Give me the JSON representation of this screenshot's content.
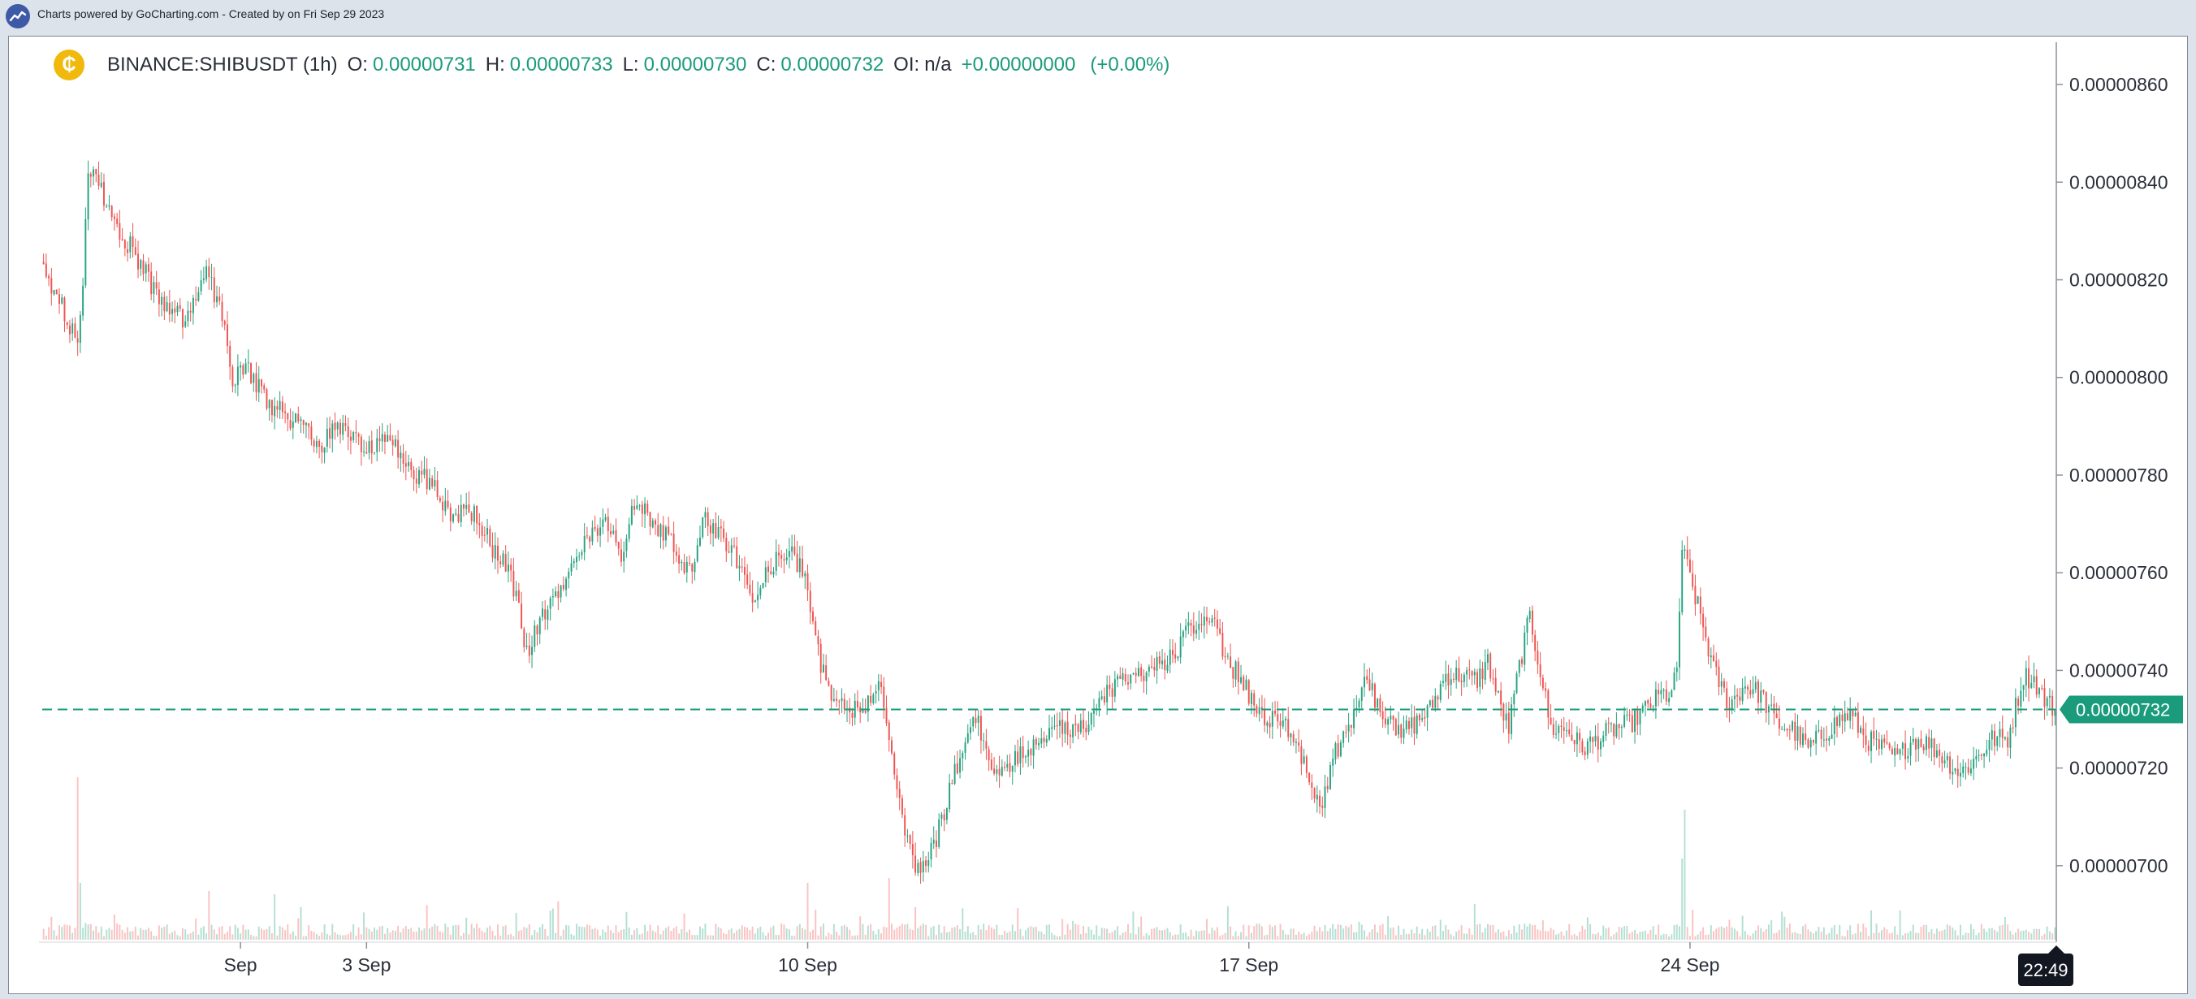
{
  "header": {
    "credit_text": "Charts powered by GoCharting.com - Created by  on Fri Sep 29 2023"
  },
  "legend": {
    "symbol": "BINANCE:SHIBUSDT (1h)",
    "open_label": "O:",
    "open_value": "0.00000731",
    "high_label": "H:",
    "high_value": "0.00000733",
    "low_label": "L:",
    "low_value": "0.00000730",
    "close_label": "C:",
    "close_value": "0.00000732",
    "oi_label": "OI:",
    "oi_value": "n/a",
    "change": "+0.00000000",
    "change_pct": "(+0.00%)"
  },
  "icons": {
    "brand": "gocharting-logo-icon",
    "coin": "shib-coin-icon"
  },
  "colors": {
    "up": "#26a27f",
    "down": "#ef5350",
    "last_price": "#1a9b7c",
    "coin": "#f0b90b",
    "brand": "#3e5aa6",
    "time_badge": "#131722"
  },
  "chart_data": {
    "type": "candlestick",
    "symbol": "BINANCE:SHIBUSDT",
    "interval": "1h",
    "time_range": [
      "2023-08-30",
      "2023-09-29"
    ],
    "x_tick_labels": [
      "Sep",
      "3 Sep",
      "10 Sep",
      "17 Sep",
      "24 Sep"
    ],
    "x_tick_hour_index": [
      75,
      123,
      291,
      459,
      627
    ],
    "y_tick_labels": [
      "0.00000700",
      "0.00000720",
      "0.00000740",
      "0.00000760",
      "0.00000780",
      "0.00000800",
      "0.00000820",
      "0.00000840",
      "0.00000860"
    ],
    "ylim": [
      6.86e-06,
      8.64e-06
    ],
    "last_price": 7.32e-06,
    "last_price_label": "0.00000732",
    "current_time_label": "22:49",
    "total_bars": 767,
    "close_anchors": [
      [
        0,
        8.22e-06
      ],
      [
        4,
        8.18e-06
      ],
      [
        10,
        8.11e-06
      ],
      [
        13,
        8.06e-06
      ],
      [
        15,
        8.2e-06
      ],
      [
        17,
        8.43e-06
      ],
      [
        22,
        8.38e-06
      ],
      [
        27,
        8.31e-06
      ],
      [
        34,
        8.26e-06
      ],
      [
        40,
        8.2e-06
      ],
      [
        46,
        8.15e-06
      ],
      [
        52,
        8.12e-06
      ],
      [
        58,
        8.15e-06
      ],
      [
        62,
        8.21e-06
      ],
      [
        68,
        8.13e-06
      ],
      [
        72,
        8e-06
      ],
      [
        78,
        8.01e-06
      ],
      [
        84,
        7.96e-06
      ],
      [
        90,
        7.93e-06
      ],
      [
        98,
        7.9e-06
      ],
      [
        105,
        7.86e-06
      ],
      [
        114,
        7.91e-06
      ],
      [
        122,
        7.85e-06
      ],
      [
        132,
        7.87e-06
      ],
      [
        140,
        7.81e-06
      ],
      [
        148,
        7.78e-06
      ],
      [
        156,
        7.71e-06
      ],
      [
        164,
        7.73e-06
      ],
      [
        172,
        7.64e-06
      ],
      [
        178,
        7.6e-06
      ],
      [
        184,
        7.44e-06
      ],
      [
        190,
        7.51e-06
      ],
      [
        198,
        7.57e-06
      ],
      [
        206,
        7.67e-06
      ],
      [
        214,
        7.7e-06
      ],
      [
        220,
        7.64e-06
      ],
      [
        226,
        7.76e-06
      ],
      [
        232,
        7.69e-06
      ],
      [
        240,
        7.66e-06
      ],
      [
        246,
        7.6e-06
      ],
      [
        252,
        7.71e-06
      ],
      [
        258,
        7.67e-06
      ],
      [
        264,
        7.63e-06
      ],
      [
        270,
        7.55e-06
      ],
      [
        276,
        7.61e-06
      ],
      [
        284,
        7.64e-06
      ],
      [
        290,
        7.6e-06
      ],
      [
        296,
        7.41e-06
      ],
      [
        300,
        7.36e-06
      ],
      [
        306,
        7.33e-06
      ],
      [
        312,
        7.31e-06
      ],
      [
        318,
        7.38e-06
      ],
      [
        322,
        7.26e-06
      ],
      [
        328,
        7.08e-06
      ],
      [
        333,
        6.99e-06
      ],
      [
        338,
        7.03e-06
      ],
      [
        342,
        7.09e-06
      ],
      [
        348,
        7.21e-06
      ],
      [
        354,
        7.32e-06
      ],
      [
        360,
        7.22e-06
      ],
      [
        366,
        7.18e-06
      ],
      [
        372,
        7.23e-06
      ],
      [
        378,
        7.25e-06
      ],
      [
        384,
        7.29e-06
      ],
      [
        390,
        7.27e-06
      ],
      [
        396,
        7.28e-06
      ],
      [
        402,
        7.33e-06
      ],
      [
        408,
        7.37e-06
      ],
      [
        414,
        7.39e-06
      ],
      [
        420,
        7.4e-06
      ],
      [
        426,
        7.41e-06
      ],
      [
        432,
        7.45e-06
      ],
      [
        438,
        7.49e-06
      ],
      [
        444,
        7.51e-06
      ],
      [
        450,
        7.43e-06
      ],
      [
        456,
        7.38e-06
      ],
      [
        462,
        7.32e-06
      ],
      [
        468,
        7.3e-06
      ],
      [
        474,
        7.28e-06
      ],
      [
        480,
        7.22e-06
      ],
      [
        486,
        7.12e-06
      ],
      [
        492,
        7.23e-06
      ],
      [
        498,
        7.3e-06
      ],
      [
        504,
        7.38e-06
      ],
      [
        510,
        7.31e-06
      ],
      [
        516,
        7.27e-06
      ],
      [
        522,
        7.29e-06
      ],
      [
        528,
        7.32e-06
      ],
      [
        534,
        7.39e-06
      ],
      [
        540,
        7.39e-06
      ],
      [
        546,
        7.38e-06
      ],
      [
        550,
        7.42e-06
      ],
      [
        554,
        7.34e-06
      ],
      [
        558,
        7.28e-06
      ],
      [
        562,
        7.41e-06
      ],
      [
        566,
        7.51e-06
      ],
      [
        570,
        7.4e-06
      ],
      [
        574,
        7.28e-06
      ],
      [
        580,
        7.28e-06
      ],
      [
        586,
        7.24e-06
      ],
      [
        592,
        7.26e-06
      ],
      [
        598,
        7.28e-06
      ],
      [
        604,
        7.29e-06
      ],
      [
        610,
        7.32e-06
      ],
      [
        616,
        7.35e-06
      ],
      [
        620,
        7.35e-06
      ],
      [
        622,
        7.4e-06
      ],
      [
        624,
        7.65e-06
      ],
      [
        628,
        7.57e-06
      ],
      [
        632,
        7.49e-06
      ],
      [
        636,
        7.4e-06
      ],
      [
        642,
        7.33e-06
      ],
      [
        648,
        7.37e-06
      ],
      [
        654,
        7.35e-06
      ],
      [
        660,
        7.29e-06
      ],
      [
        666,
        7.28e-06
      ],
      [
        672,
        7.24e-06
      ],
      [
        678,
        7.27e-06
      ],
      [
        684,
        7.3e-06
      ],
      [
        688,
        7.31e-06
      ],
      [
        694,
        7.26e-06
      ],
      [
        700,
        7.24e-06
      ],
      [
        706,
        7.22e-06
      ],
      [
        712,
        7.26e-06
      ],
      [
        718,
        7.25e-06
      ],
      [
        724,
        7.22e-06
      ],
      [
        730,
        7.19e-06
      ],
      [
        736,
        7.22e-06
      ],
      [
        742,
        7.26e-06
      ],
      [
        748,
        7.26e-06
      ],
      [
        754,
        7.39e-06
      ],
      [
        758,
        7.38e-06
      ],
      [
        762,
        7.34e-06
      ],
      [
        766,
        7.32e-06
      ]
    ],
    "volume_spikes": [
      [
        13,
        1.0
      ],
      [
        14,
        0.35
      ],
      [
        63,
        0.3
      ],
      [
        88,
        0.28
      ],
      [
        291,
        0.35
      ],
      [
        322,
        0.38
      ],
      [
        624,
        0.5
      ],
      [
        625,
        0.8
      ],
      [
        545,
        0.22
      ],
      [
        707,
        0.18
      ]
    ],
    "grid": false,
    "legend_position": "top-left"
  }
}
